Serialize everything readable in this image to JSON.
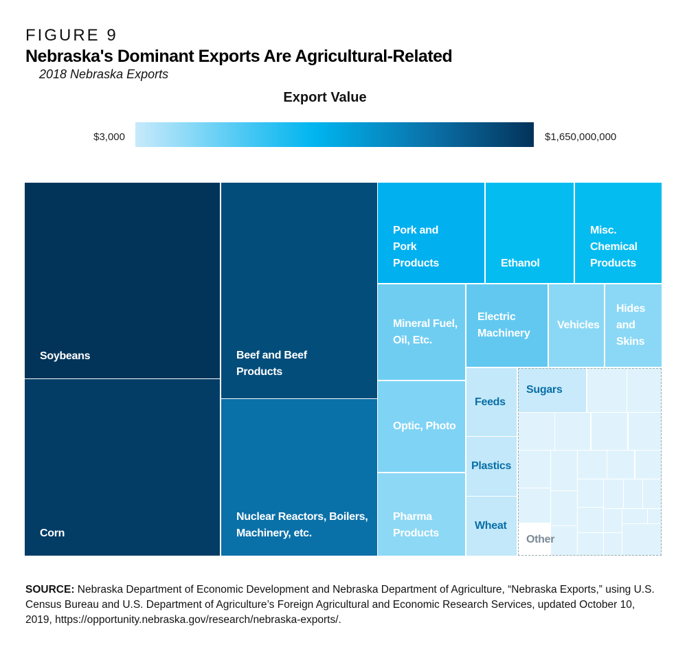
{
  "figure_label": "FIGURE 9",
  "chart_data": {
    "type": "treemap",
    "title": "Nebraska's Dominant Exports Are Agricultural-Related",
    "subtitle": "2018 Nebraska Exports",
    "legend": {
      "title": "Export Value",
      "min_label": "$3,000",
      "max_label": "$1,650,000,000",
      "min_color": "#c8eafb",
      "max_color": "#03335a"
    },
    "categories": [
      {
        "label": "Soybeans",
        "color": "#023459",
        "text_color": "#ffffff"
      },
      {
        "label": "Corn",
        "color": "#033d66",
        "text_color": "#ffffff"
      },
      {
        "label": "Beef and Beef Products",
        "color": "#034d7a",
        "text_color": "#ffffff"
      },
      {
        "label": "Nuclear Reactors, Boilers, Machinery, etc.",
        "color": "#0a70a8",
        "text_color": "#ffffff"
      },
      {
        "label": "Pork and Pork Products",
        "color": "#00b0ef",
        "text_color": "#ffffff"
      },
      {
        "label": "Ethanol",
        "color": "#05bcf0",
        "text_color": "#ffffff"
      },
      {
        "label": "Misc. Chemical Products",
        "color": "#05bcf0",
        "text_color": "#ffffff"
      },
      {
        "label": "Mineral Fuel, Oil, Etc.",
        "color": "#70cdf2",
        "text_color": "#ffffff"
      },
      {
        "label": "Electric Machinery",
        "color": "#62c8f0",
        "text_color": "#ffffff"
      },
      {
        "label": "Vehicles",
        "color": "#8ad8f5",
        "text_color": "#ffffff"
      },
      {
        "label": "Hides and Skins",
        "color": "#8ad8f5",
        "text_color": "#ffffff"
      },
      {
        "label": "Optic, Photo",
        "color": "#7fd3f5",
        "text_color": "#ffffff"
      },
      {
        "label": "Pharma Products",
        "color": "#8dd8f5",
        "text_color": "#ffffff"
      },
      {
        "label": "Feeds",
        "color": "#c2e8fa",
        "text_color": "#0a6fa6"
      },
      {
        "label": "Plastics",
        "color": "#c2e8fa",
        "text_color": "#0a6fa6"
      },
      {
        "label": "Wheat",
        "color": "#c2e8fa",
        "text_color": "#0a6fa6"
      },
      {
        "label": "Sugars",
        "color": "#c8eafb",
        "text_color": "#0a6fa6"
      },
      {
        "label": "Other",
        "color": "#e0f3fc",
        "text_color": "#7a8a95"
      }
    ]
  },
  "source": {
    "label": "SOURCE:",
    "text": " Nebraska Department of Economic Development and Nebraska Department of Agriculture, “Nebraska Exports,” using U.S. Census Bureau and U.S. Department of Agriculture’s Foreign Agricultural and Economic Research Services, updated October 10, 2019, https://opportunity.nebraska.gov/research/nebraska-exports/."
  }
}
